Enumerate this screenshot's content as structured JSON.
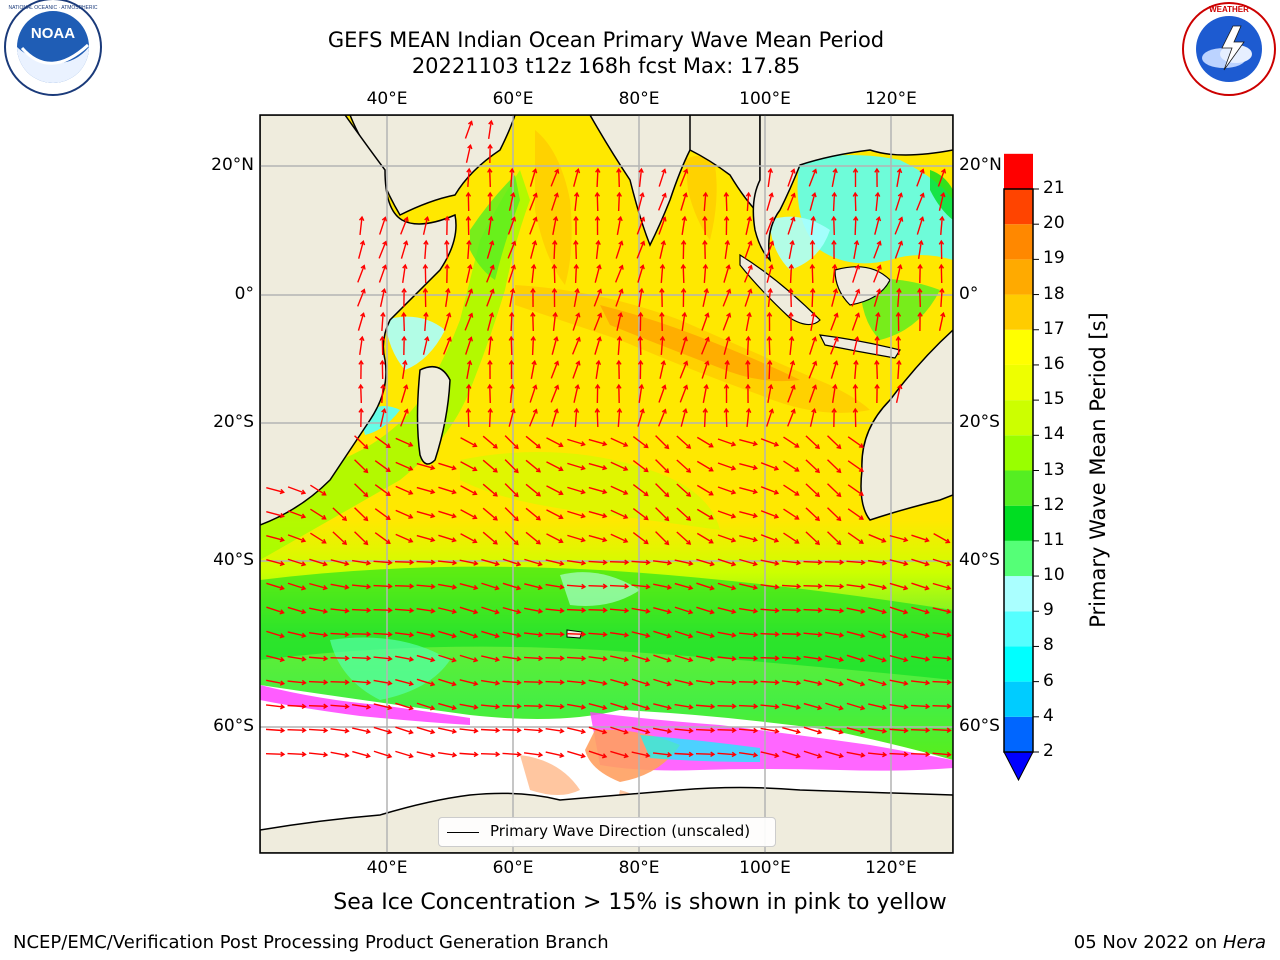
{
  "header": {
    "title_line1": "GEFS MEAN Indian Ocean Primary Wave Mean Period",
    "title_line2": "20221103 t12z 168h fcst   Max: 17.85"
  },
  "logos": {
    "left": "NOAA",
    "left_ring_text": "NATIONAL OCEANIC AND ATMOSPHERIC ADMINISTRATION · U.S. DEPARTMENT OF COMMERCE",
    "right_ring_text": "NATIONAL WEATHER SERVICE"
  },
  "map": {
    "lon_ticks": [
      "40°E",
      "60°E",
      "80°E",
      "100°E",
      "120°E"
    ],
    "lon_values": [
      40,
      60,
      80,
      100,
      120
    ],
    "lat_ticks": [
      "20°N",
      "0°",
      "20°S",
      "40°S",
      "60°S"
    ],
    "lat_values": [
      20,
      0,
      -20,
      -40,
      -60
    ],
    "lon_range": [
      20,
      130
    ],
    "lat_range": [
      -75,
      28
    ],
    "legend_label": "Primary Wave Direction (unscaled)",
    "arrow_color": "#ff0000",
    "land_color": "#efecdd",
    "ice_color_low": "#ff40ff",
    "ice_color_high": "#ffa060"
  },
  "colorbar": {
    "title": "Primary Wave Mean Period [s]",
    "labels": [
      "2",
      "4",
      "6",
      "8",
      "9",
      "10",
      "11",
      "12",
      "13",
      "14",
      "15",
      "16",
      "17",
      "18",
      "19",
      "20",
      "21"
    ],
    "colors": [
      "#0066ff",
      "#00ccff",
      "#00ffff",
      "#55ffff",
      "#aaffff",
      "#55ff77",
      "#00dd22",
      "#55ee22",
      "#99ff00",
      "#ccff00",
      "#eeff00",
      "#ffff00",
      "#ffcc00",
      "#ffaa00",
      "#ff8800",
      "#ff4400",
      "#ff0000"
    ]
  },
  "footer": {
    "subtitle": "Sea Ice Concentration > 15% is shown in pink to yellow",
    "left": "NCEP/EMC/Verification Post Processing Product Generation Branch",
    "date": "05 Nov 2022 on ",
    "machine": "Hera"
  }
}
